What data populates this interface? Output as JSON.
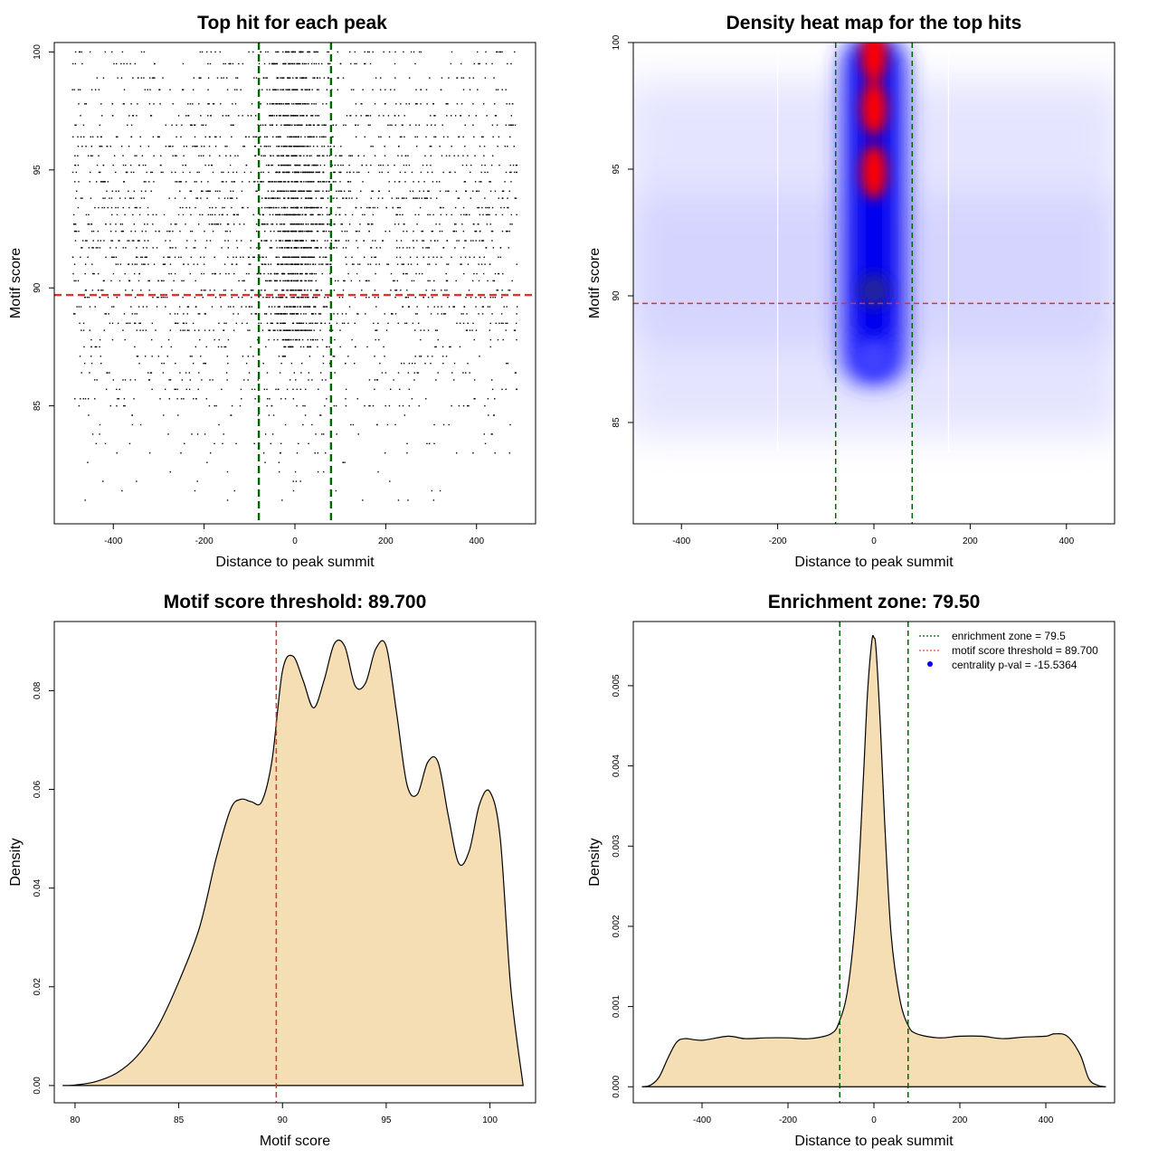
{
  "chart_data": [
    {
      "type": "scatter",
      "title": "Top hit for each peak",
      "xlabel": "Distance to peak summit",
      "ylabel": "Motif score",
      "xlim": [
        -530,
        530
      ],
      "ylim": [
        80,
        100.4
      ],
      "xticks": [
        -400,
        -200,
        0,
        200,
        400
      ],
      "yticks": [
        85,
        90,
        95,
        100
      ],
      "threshold_y": 89.7,
      "zone_x": [
        -79.5,
        79.5
      ],
      "score_levels": [
        100,
        99.5,
        98.9,
        98.4,
        97.8,
        97.3,
        96.9,
        96.4,
        96.0,
        95.6,
        95.2,
        94.9,
        94.5,
        94.1,
        93.8,
        93.4,
        93.1,
        92.7,
        92.4,
        92.0,
        91.7,
        91.3,
        91.0,
        90.6,
        90.3,
        89.9,
        89.6,
        89.2,
        88.9,
        88.5,
        88.2,
        87.8,
        87.5,
        87.1,
        86.8,
        86.4,
        86.1,
        85.7,
        85.3,
        85.0,
        84.6,
        84.2,
        83.8,
        83.4,
        83.0,
        82.6,
        82.2,
        81.8,
        81.4,
        81.0
      ]
    },
    {
      "type": "heatmap",
      "title": "Density heat map for the top hits",
      "xlabel": "Distance to peak summit",
      "ylabel": "Motif score",
      "xlim": [
        -500,
        500
      ],
      "ylim": [
        81,
        100
      ],
      "xticks": [
        -400,
        -200,
        0,
        200,
        400
      ],
      "yticks": [
        85,
        90,
        95,
        100
      ],
      "threshold_y": 89.7,
      "zone_x": [
        -79.5,
        79.5
      ],
      "hotspots": [
        {
          "y": 99.5,
          "intensity": 1.0
        },
        {
          "y": 97.4,
          "intensity": 0.95
        },
        {
          "y": 94.9,
          "intensity": 0.9
        },
        {
          "y": 90.2,
          "intensity": 0.55
        },
        {
          "y": 87.5,
          "intensity": 0.4
        }
      ]
    },
    {
      "type": "area",
      "title": "Motif score threshold: 89.700",
      "xlabel": "Motif score",
      "ylabel": "Density",
      "xlim": [
        79,
        102.2
      ],
      "ylim": [
        -0.0035,
        0.094
      ],
      "xticks": [
        80,
        85,
        90,
        95,
        100
      ],
      "yticks": [
        0.0,
        0.02,
        0.04,
        0.06,
        0.08
      ],
      "ytick_labels": [
        "0.00",
        "0.02",
        "0.04",
        "0.06",
        "0.08"
      ],
      "threshold_x": 89.7,
      "fill": "#F5DEB3",
      "x": [
        79.4,
        80,
        81,
        82,
        83,
        84,
        85,
        86,
        86.8,
        87.5,
        88,
        88.5,
        89,
        89.5,
        90,
        90.5,
        91,
        91.5,
        92,
        92.5,
        93,
        93.5,
        94,
        94.5,
        95,
        95.5,
        96,
        96.5,
        97,
        97.5,
        98,
        98.5,
        99,
        99.5,
        100,
        100.5,
        101,
        101.6
      ],
      "y": [
        0,
        0.0001,
        0.0008,
        0.0025,
        0.006,
        0.012,
        0.021,
        0.032,
        0.046,
        0.056,
        0.058,
        0.0575,
        0.0575,
        0.066,
        0.084,
        0.087,
        0.082,
        0.0765,
        0.082,
        0.0895,
        0.089,
        0.081,
        0.0815,
        0.0885,
        0.089,
        0.0755,
        0.061,
        0.059,
        0.0655,
        0.0655,
        0.0545,
        0.045,
        0.0475,
        0.057,
        0.0595,
        0.05,
        0.02,
        0
      ]
    },
    {
      "type": "area",
      "title": "Enrichment zone: 79.50",
      "xlabel": "Distance to peak summit",
      "ylabel": "Density",
      "xlim": [
        -560,
        560
      ],
      "ylim": [
        -0.0002,
        0.0058
      ],
      "xticks": [
        -400,
        -200,
        0,
        200,
        400
      ],
      "yticks": [
        0.0,
        0.001,
        0.002,
        0.003,
        0.004,
        0.005
      ],
      "ytick_labels": [
        "0.000",
        "0.001",
        "0.002",
        "0.003",
        "0.004",
        "0.005"
      ],
      "zone_x": [
        -79.5,
        79.5
      ],
      "fill": "#F5DEB3",
      "x": [
        -540,
        -520,
        -500,
        -480,
        -460,
        -440,
        -400,
        -340,
        -300,
        -250,
        -200,
        -150,
        -100,
        -80,
        -60,
        -40,
        -25,
        -15,
        -5,
        0,
        5,
        15,
        25,
        40,
        60,
        80,
        100,
        150,
        200,
        250,
        300,
        350,
        400,
        420,
        450,
        480,
        500,
        520,
        540
      ],
      "y": [
        0,
        2e-05,
        0.00012,
        0.00035,
        0.00055,
        0.0006,
        0.00058,
        0.00063,
        0.0006,
        0.00061,
        0.00061,
        0.0006,
        0.00066,
        0.00082,
        0.00125,
        0.0023,
        0.0038,
        0.0049,
        0.00555,
        0.0056,
        0.00545,
        0.0045,
        0.0033,
        0.0019,
        0.0011,
        0.00076,
        0.00066,
        0.00061,
        0.00063,
        0.00063,
        0.0006,
        0.00062,
        0.00063,
        0.00066,
        0.00063,
        0.0004,
        0.0001,
        2e-05,
        0
      ],
      "legend": {
        "placement": "top-right",
        "entries": [
          {
            "label": "enrichment zone = 79.5",
            "color": "#006400",
            "style": "dotted"
          },
          {
            "label": "motif score threshold = 89.700",
            "color": "#FF4040",
            "style": "dotted"
          },
          {
            "label": "centrality p-val = -15.5364",
            "color": "#0000FF",
            "style": "point"
          }
        ]
      }
    }
  ]
}
